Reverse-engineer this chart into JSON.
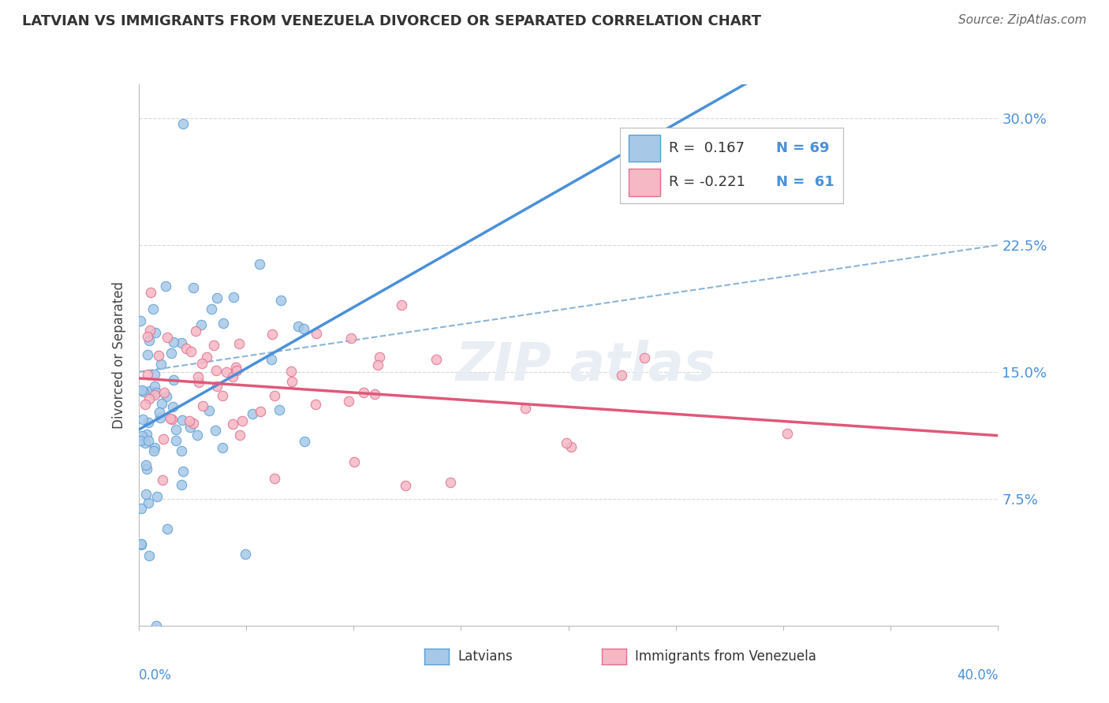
{
  "title": "LATVIAN VS IMMIGRANTS FROM VENEZUELA DIVORCED OR SEPARATED CORRELATION CHART",
  "source": "Source: ZipAtlas.com",
  "ylabel": "Divorced or Separated",
  "xmin": 0.0,
  "xmax": 40.0,
  "ymin": 0.0,
  "ymax": 32.0,
  "yticks": [
    0.0,
    7.5,
    15.0,
    22.5,
    30.0
  ],
  "ytick_labels": [
    "",
    "7.5%",
    "15.0%",
    "22.5%",
    "30.0%"
  ],
  "color_latvian_fill": "#a8c8e8",
  "color_latvian_edge": "#5a9fd4",
  "color_venezuela_fill": "#f5b8c4",
  "color_venezuela_edge": "#e07090",
  "color_latvian_line": "#4a90d9",
  "color_venezuela_line": "#e05878",
  "color_dashed": "#8ab4d8",
  "color_grid": "#d8d8d8",
  "color_axis_label": "#4a90d9",
  "watermark_color": "#e8eef4",
  "lv_ymean": 13.0,
  "lv_ystd": 5.0,
  "lv_xscale": 2.2,
  "vz_ymean": 14.5,
  "vz_ystd": 3.0,
  "vz_xscale": 8.0,
  "r_latvian": 0.167,
  "r_venezuela": -0.221,
  "n_latvian": 69,
  "n_venezuela": 61
}
